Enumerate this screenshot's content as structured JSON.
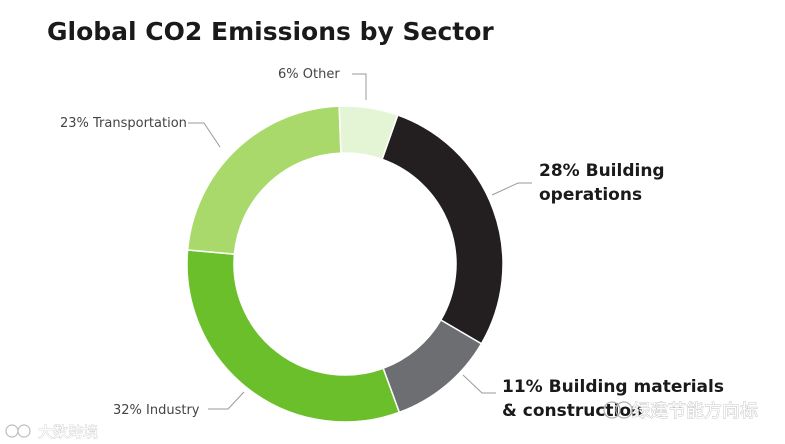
{
  "chart_data": {
    "type": "pie",
    "title": "Global CO2 Emissions by Sector",
    "slices": [
      {
        "label": "28% Building operations",
        "line1": "28% Building",
        "line2": "operations",
        "value": 28,
        "color": "#231f20",
        "style": "bold"
      },
      {
        "label": "11% Building materials & construction",
        "line1": "11% Building materials",
        "line2": "& construction",
        "value": 11,
        "color": "#6d6e71",
        "style": "bold"
      },
      {
        "label": "32% Industry",
        "line1": "32% Industry",
        "line2": "",
        "value": 32,
        "color": "#6abf2a",
        "style": "light"
      },
      {
        "label": "23% Transportation",
        "line1": "23% Transportation",
        "line2": "",
        "value": 23,
        "color": "#a8d96a",
        "style": "light"
      },
      {
        "label": "6% Other",
        "line1": "6% Other",
        "line2": "",
        "value": 6,
        "color": "#e4f5d5",
        "style": "light"
      }
    ]
  },
  "watermarks": {
    "left": "大数跨境",
    "right": "绿建节能方向标"
  }
}
